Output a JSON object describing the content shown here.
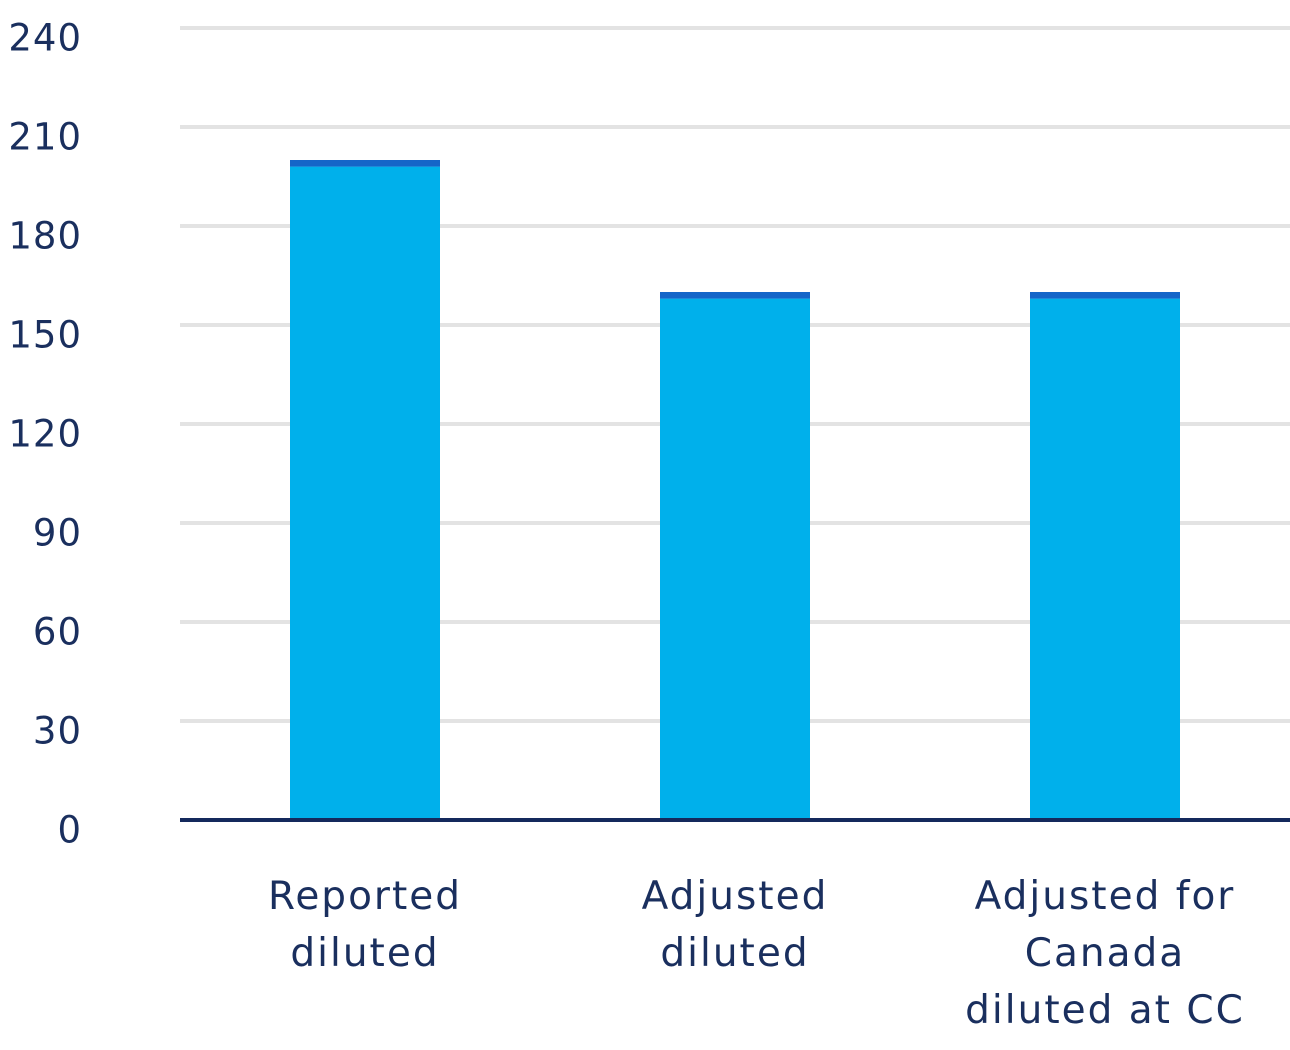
{
  "chart_data": {
    "type": "stacked-bar",
    "categories": [
      "Reported\ndiluted",
      "Adjusted\ndiluted",
      "Adjusted for\nCanada\ndiluted at CC"
    ],
    "series": [
      {
        "color": "#00b0eb",
        "values": [
          198,
          158,
          158
        ]
      },
      {
        "color": "#1565c8",
        "values": [
          2,
          2,
          2
        ]
      }
    ],
    "ylim": [
      0,
      240
    ],
    "yticks": [
      0,
      30,
      60,
      90,
      120,
      150,
      180,
      210,
      240
    ],
    "grid": true
  }
}
